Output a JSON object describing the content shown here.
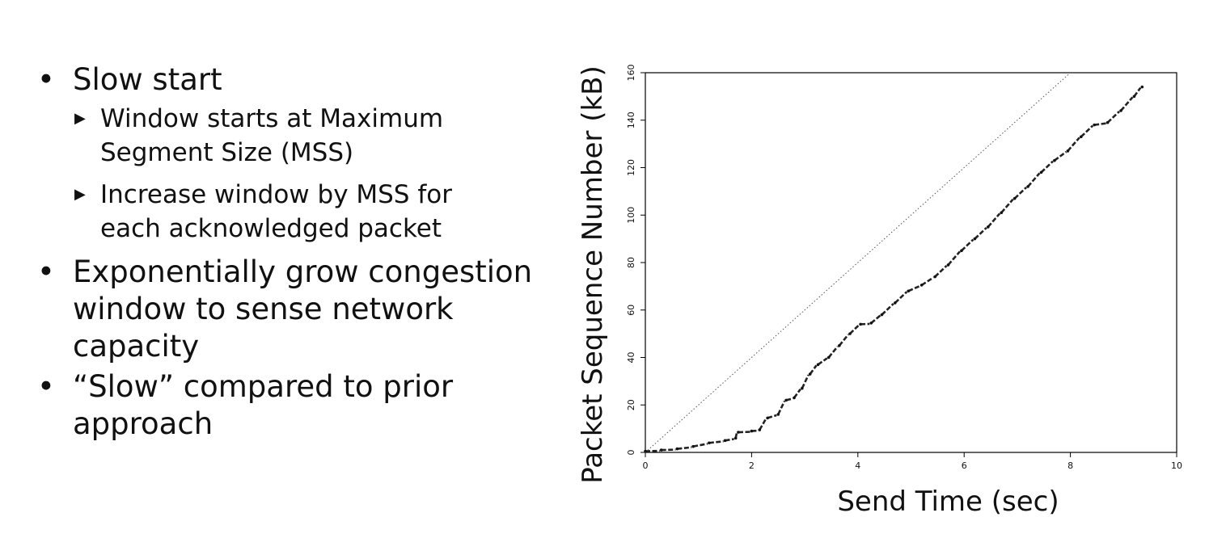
{
  "bullets": {
    "b1": "Slow start",
    "b1_1": "Window starts at Maximum",
    "b1_1b": "Segment Size (MSS)",
    "b1_2": "Increase window by MSS for",
    "b1_2b": "each acknowledged packet",
    "b2": "Exponentially grow congestion",
    "b2b": "window to sense network",
    "b2c": "capacity",
    "b3": "“Slow” compared to prior",
    "b3b": "approach",
    "dot": "•",
    "tri": "▶"
  },
  "chart_data": {
    "type": "scatter",
    "xlabel": "Send Time (sec)",
    "ylabel": "Packet Sequence Number (kB)",
    "xlim": [
      0,
      10
    ],
    "ylim": [
      0,
      160
    ],
    "xticks": [
      0,
      2,
      4,
      6,
      8,
      10
    ],
    "yticks": [
      0,
      20,
      40,
      60,
      80,
      100,
      120,
      140,
      160
    ],
    "series": [
      {
        "style": "dotted-line",
        "points": [
          [
            0,
            0
          ],
          [
            8,
            160
          ]
        ]
      },
      {
        "style": "markers",
        "points": [
          [
            0.0,
            0.5
          ],
          [
            0.3,
            1.0
          ],
          [
            0.6,
            1.5
          ],
          [
            0.9,
            2.5
          ],
          [
            1.2,
            4.0
          ],
          [
            1.5,
            5.0
          ],
          [
            1.7,
            6.0
          ],
          [
            1.75,
            8.5
          ],
          [
            2.0,
            9.0
          ],
          [
            2.15,
            9.5
          ],
          [
            2.3,
            14.5
          ],
          [
            2.5,
            16.0
          ],
          [
            2.65,
            22.0
          ],
          [
            2.8,
            23.0
          ],
          [
            2.95,
            27.0
          ],
          [
            3.1,
            33.0
          ],
          [
            3.25,
            37.0
          ],
          [
            3.45,
            40.0
          ],
          [
            3.65,
            45.0
          ],
          [
            3.85,
            50.0
          ],
          [
            4.05,
            54.0
          ],
          [
            4.25,
            54.5
          ],
          [
            4.45,
            58.0
          ],
          [
            4.7,
            63.0
          ],
          [
            4.95,
            68.0
          ],
          [
            5.2,
            70.5
          ],
          [
            5.45,
            74.0
          ],
          [
            5.7,
            79.0
          ],
          [
            5.95,
            85.0
          ],
          [
            6.2,
            90.0
          ],
          [
            6.45,
            95.0
          ],
          [
            6.7,
            101.0
          ],
          [
            6.95,
            107.0
          ],
          [
            7.2,
            112.0
          ],
          [
            7.45,
            118.0
          ],
          [
            7.7,
            123.0
          ],
          [
            7.95,
            127.0
          ],
          [
            8.2,
            133.0
          ],
          [
            8.45,
            138.0
          ],
          [
            8.7,
            139.0
          ],
          [
            8.95,
            144.0
          ],
          [
            9.2,
            150.0
          ],
          [
            9.35,
            154.0
          ]
        ]
      }
    ]
  }
}
